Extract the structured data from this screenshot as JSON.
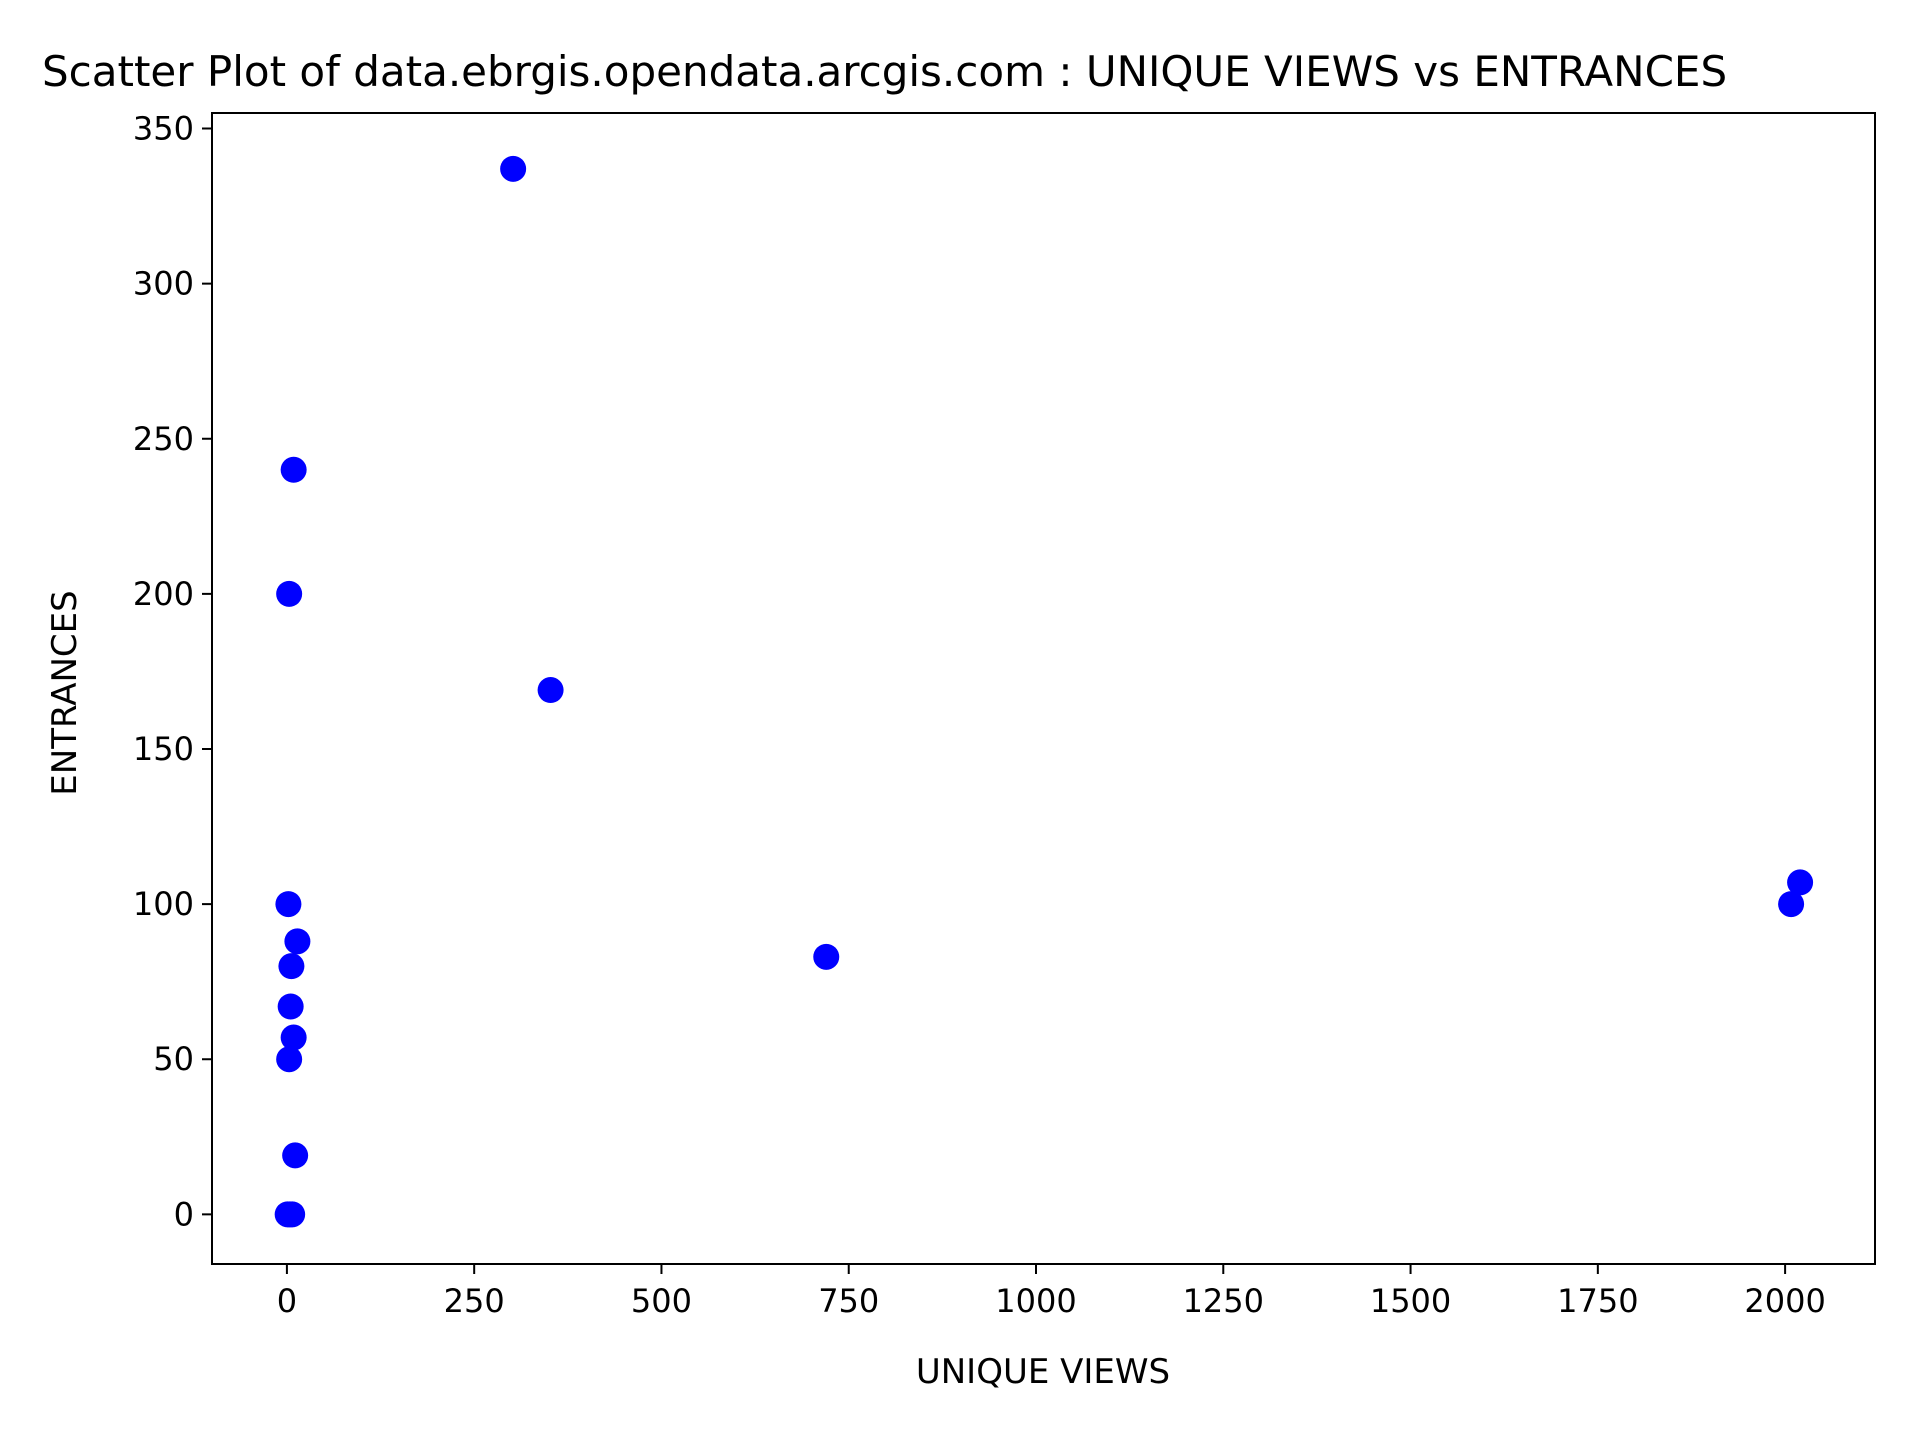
{
  "chart_data": {
    "type": "scatter",
    "title": "Scatter Plot of data.ebrgis.opendata.arcgis.com : UNIQUE VIEWS vs ENTRANCES",
    "xlabel": "UNIQUE VIEWS",
    "ylabel": "ENTRANCES",
    "xlim": [
      -100,
      2120
    ],
    "ylim": [
      -16,
      355
    ],
    "x_ticks": [
      0,
      250,
      500,
      750,
      1000,
      1250,
      1500,
      1750,
      2000
    ],
    "y_ticks": [
      0,
      50,
      100,
      150,
      200,
      250,
      300,
      350
    ],
    "grid": false,
    "marker_color": "#0000ff",
    "points": [
      {
        "x": 302,
        "y": 337
      },
      {
        "x": 9,
        "y": 240
      },
      {
        "x": 3,
        "y": 200
      },
      {
        "x": 352,
        "y": 169
      },
      {
        "x": 2020,
        "y": 107
      },
      {
        "x": 2008,
        "y": 100
      },
      {
        "x": 2,
        "y": 100
      },
      {
        "x": 14,
        "y": 88
      },
      {
        "x": 720,
        "y": 83
      },
      {
        "x": 6,
        "y": 80
      },
      {
        "x": 5,
        "y": 67
      },
      {
        "x": 9,
        "y": 57
      },
      {
        "x": 3,
        "y": 50
      },
      {
        "x": 11,
        "y": 19
      },
      {
        "x": 1,
        "y": 0
      },
      {
        "x": 4,
        "y": 0
      },
      {
        "x": 7,
        "y": 0
      }
    ]
  }
}
